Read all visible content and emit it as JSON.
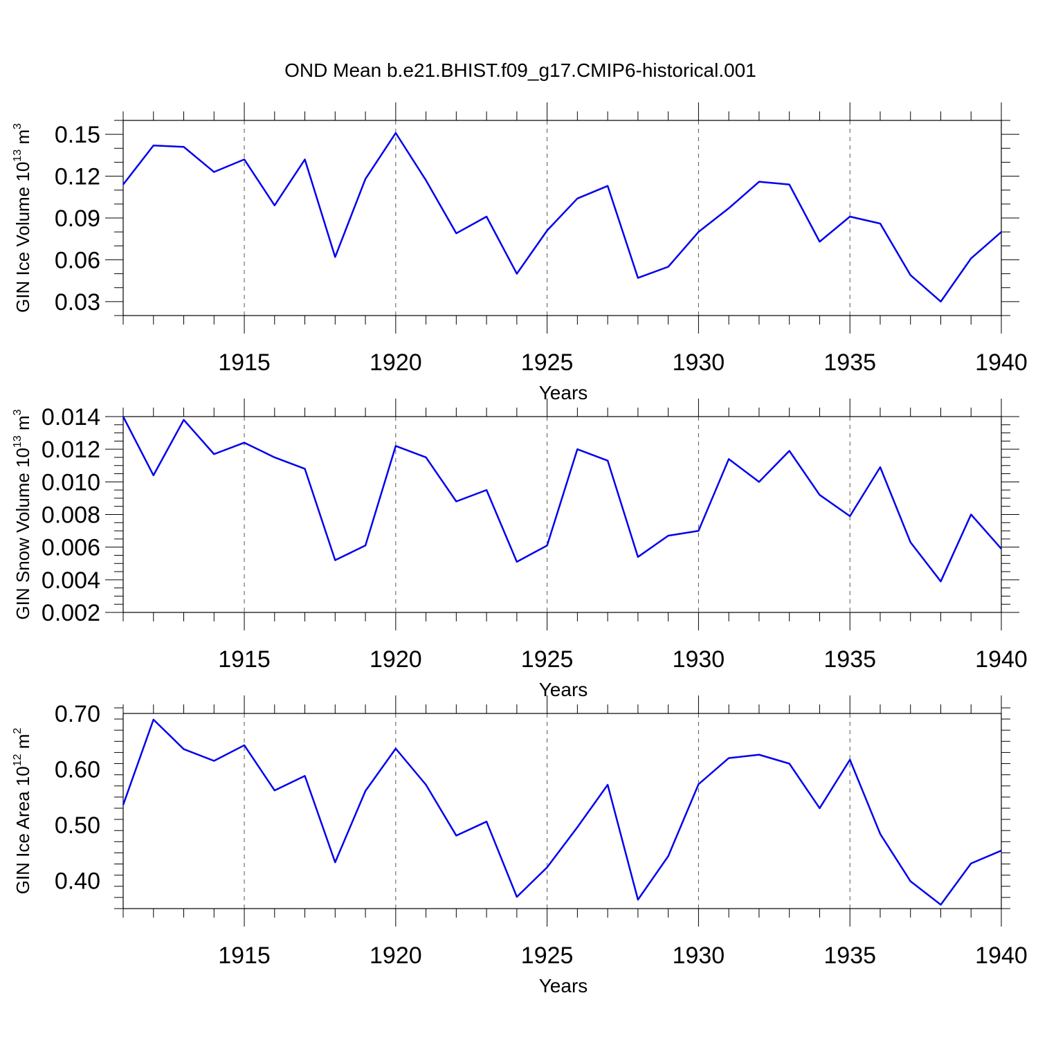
{
  "title": "OND Mean b.e21.BHIST.f09_g17.CMIP6-historical.001",
  "chart_data": [
    {
      "type": "line",
      "ylabel": "GIN Ice Volume 10",
      "ylabel_exp": "13",
      "ylabel_unit": " m",
      "ylabel_unit_exp": "3",
      "xlabel": "Years",
      "xlim": [
        1911,
        1940
      ],
      "ylim": [
        0.02,
        0.16
      ],
      "yticks": [
        0.03,
        0.06,
        0.09,
        0.12,
        0.15
      ],
      "ytick_labels": [
        "0.03",
        "0.06",
        "0.09",
        "0.12",
        "0.15"
      ],
      "yminor": 0.01,
      "xticks": [
        1915,
        1920,
        1925,
        1930,
        1935,
        1940
      ],
      "xtick_labels": [
        "1915",
        "1920",
        "1925",
        "1930",
        "1935",
        "1940"
      ],
      "x": [
        1911,
        1912,
        1913,
        1914,
        1915,
        1916,
        1917,
        1918,
        1919,
        1920,
        1921,
        1922,
        1923,
        1924,
        1925,
        1926,
        1927,
        1928,
        1929,
        1930,
        1931,
        1932,
        1933,
        1934,
        1935,
        1936,
        1937,
        1938,
        1939,
        1940
      ],
      "values": [
        0.114,
        0.142,
        0.141,
        0.123,
        0.132,
        0.099,
        0.132,
        0.062,
        0.118,
        0.151,
        0.117,
        0.079,
        0.091,
        0.05,
        0.081,
        0.104,
        0.113,
        0.047,
        0.055,
        0.08,
        0.097,
        0.116,
        0.114,
        0.073,
        0.091,
        0.086,
        0.049,
        0.03,
        0.061,
        0.08
      ]
    },
    {
      "type": "line",
      "ylabel": "GIN Snow Volume 10",
      "ylabel_exp": "13",
      "ylabel_unit": " m",
      "ylabel_unit_exp": "3",
      "xlabel": "Years",
      "xlim": [
        1911,
        1940
      ],
      "ylim": [
        0.002,
        0.014
      ],
      "yticks": [
        0.002,
        0.004,
        0.006,
        0.008,
        0.01,
        0.012,
        0.014
      ],
      "ytick_labels": [
        "0.002",
        "0.004",
        "0.006",
        "0.008",
        "0.010",
        "0.012",
        "0.014"
      ],
      "yminor": 0.0005,
      "xticks": [
        1915,
        1920,
        1925,
        1930,
        1935,
        1940
      ],
      "xtick_labels": [
        "1915",
        "1920",
        "1925",
        "1930",
        "1935",
        "1940"
      ],
      "x": [
        1911,
        1912,
        1913,
        1914,
        1915,
        1916,
        1917,
        1918,
        1919,
        1920,
        1921,
        1922,
        1923,
        1924,
        1925,
        1926,
        1927,
        1928,
        1929,
        1930,
        1931,
        1932,
        1933,
        1934,
        1935,
        1936,
        1937,
        1938,
        1939,
        1940
      ],
      "values": [
        0.014,
        0.0104,
        0.0138,
        0.0117,
        0.0124,
        0.0115,
        0.0108,
        0.0052,
        0.0061,
        0.0122,
        0.0115,
        0.0088,
        0.0095,
        0.0051,
        0.0061,
        0.012,
        0.0113,
        0.0054,
        0.0067,
        0.007,
        0.0114,
        0.01,
        0.0119,
        0.0092,
        0.0079,
        0.0109,
        0.0063,
        0.0039,
        0.008,
        0.0059
      ]
    },
    {
      "type": "line",
      "ylabel": "GIN Ice Area 10",
      "ylabel_exp": "12",
      "ylabel_unit": " m",
      "ylabel_unit_exp": "2",
      "xlabel": "Years",
      "xlim": [
        1911,
        1940
      ],
      "ylim": [
        0.35,
        0.7
      ],
      "yticks": [
        0.4,
        0.5,
        0.6,
        0.7
      ],
      "ytick_labels": [
        "0.40",
        "0.50",
        "0.60",
        "0.70"
      ],
      "yminor": 0.02,
      "xticks": [
        1915,
        1920,
        1925,
        1930,
        1935,
        1940
      ],
      "xtick_labels": [
        "1915",
        "1920",
        "1925",
        "1930",
        "1935",
        "1940"
      ],
      "x": [
        1911,
        1912,
        1913,
        1914,
        1915,
        1916,
        1917,
        1918,
        1919,
        1920,
        1921,
        1922,
        1923,
        1924,
        1925,
        1926,
        1927,
        1928,
        1929,
        1930,
        1931,
        1932,
        1933,
        1934,
        1935,
        1936,
        1937,
        1938,
        1939,
        1940
      ],
      "values": [
        0.536,
        0.689,
        0.636,
        0.615,
        0.643,
        0.562,
        0.588,
        0.433,
        0.561,
        0.637,
        0.572,
        0.481,
        0.506,
        0.371,
        0.424,
        0.496,
        0.572,
        0.366,
        0.444,
        0.573,
        0.62,
        0.626,
        0.61,
        0.53,
        0.617,
        0.484,
        0.399,
        0.357,
        0.431,
        0.454
      ]
    }
  ],
  "colors": {
    "series": "#0000ee",
    "frame": "#000000",
    "grid": "#555555"
  }
}
